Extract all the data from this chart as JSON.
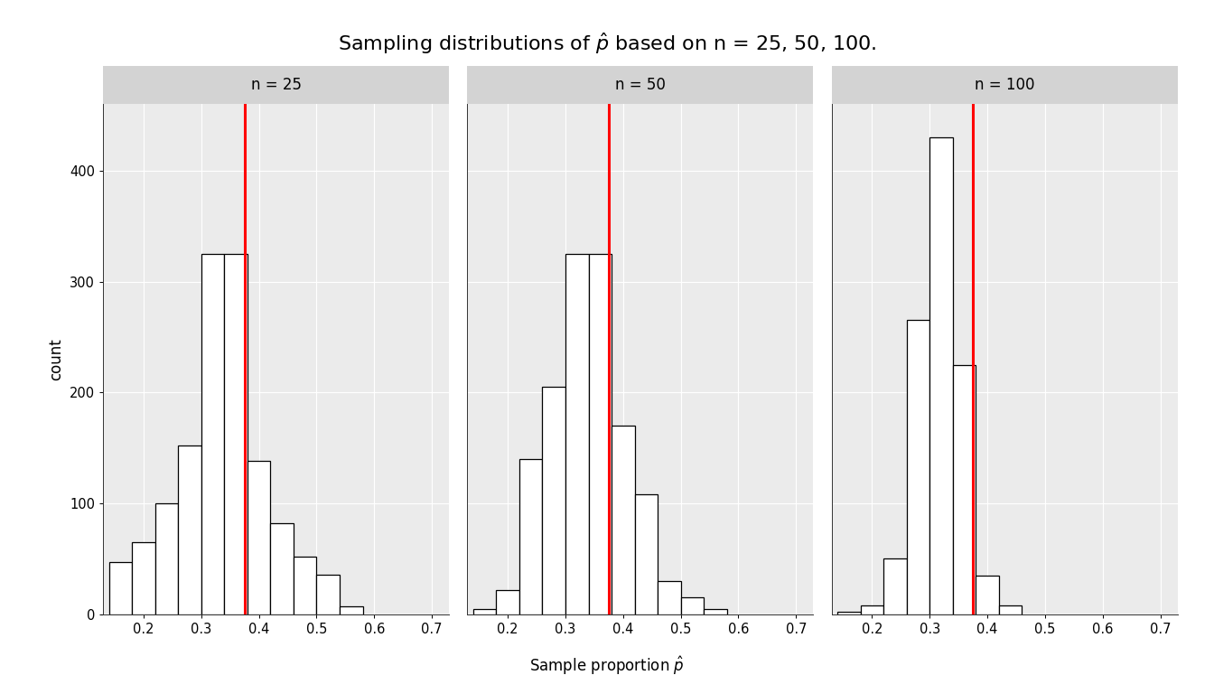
{
  "title": "Sampling distributions of $\\hat{p}$ based on n = 25, 50, 100.",
  "xlabel": "Sample proportion $\\hat{p}$",
  "ylabel": "count",
  "p": 0.375,
  "panel_labels": [
    "n = 25",
    "n = 50",
    "n = 100"
  ],
  "xlim": [
    0.13,
    0.73
  ],
  "ylim": [
    0,
    460
  ],
  "xticks": [
    0.2,
    0.3,
    0.4,
    0.5,
    0.6,
    0.7
  ],
  "yticks": [
    0,
    100,
    200,
    300,
    400
  ],
  "background_color": "#EBEBEB",
  "panel_header_color": "#D3D3D3",
  "grid_color": "#FFFFFF",
  "bar_facecolor": "#FFFFFF",
  "bar_edgecolor": "#000000",
  "vline_color": "#FF0000",
  "bin_width": 0.04,
  "bin_starts": [
    0.14,
    0.18,
    0.22,
    0.26,
    0.3,
    0.34,
    0.38,
    0.42,
    0.46,
    0.5,
    0.54,
    0.58,
    0.62,
    0.66
  ],
  "n25_counts": [
    47,
    65,
    100,
    152,
    325,
    325,
    138,
    82,
    52,
    36,
    7,
    0,
    0,
    0
  ],
  "n50_counts": [
    5,
    22,
    140,
    205,
    325,
    325,
    170,
    108,
    30,
    15,
    5,
    0,
    0,
    0
  ],
  "n100_counts": [
    2,
    8,
    50,
    265,
    430,
    225,
    35,
    8,
    0,
    0,
    0,
    0,
    0,
    0
  ]
}
